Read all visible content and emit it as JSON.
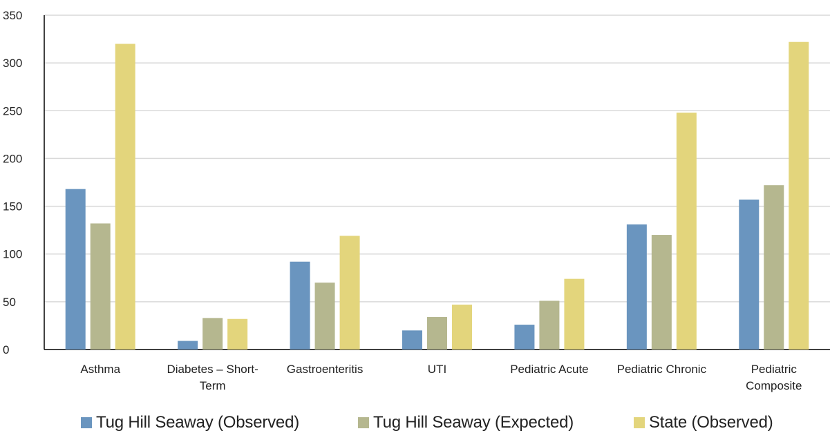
{
  "chart_data": {
    "type": "bar",
    "title": "",
    "xlabel": "",
    "ylabel": "",
    "ylim": [
      0,
      350
    ],
    "yticks": [
      0,
      50,
      100,
      150,
      200,
      250,
      300,
      350
    ],
    "grid": true,
    "legend_position": "bottom",
    "categories": [
      [
        "Asthma"
      ],
      [
        "Diabetes – Short-",
        "Term"
      ],
      [
        "Gastroenteritis"
      ],
      [
        "UTI"
      ],
      [
        "Pediatric Acute"
      ],
      [
        "Pediatric Chronic"
      ],
      [
        "Pediatric",
        "Composite"
      ]
    ],
    "series": [
      {
        "name": "Tug Hill Seaway (Observed)",
        "color": "#6a95bf",
        "values": [
          168,
          9,
          92,
          20,
          26,
          131,
          157
        ]
      },
      {
        "name": "Tug Hill Seaway (Expected)",
        "color": "#b5b78f",
        "values": [
          132,
          33,
          70,
          34,
          51,
          120,
          172
        ]
      },
      {
        "name": "State (Observed)",
        "color": "#e3d57c",
        "values": [
          320,
          32,
          119,
          47,
          74,
          248,
          322
        ]
      }
    ]
  }
}
